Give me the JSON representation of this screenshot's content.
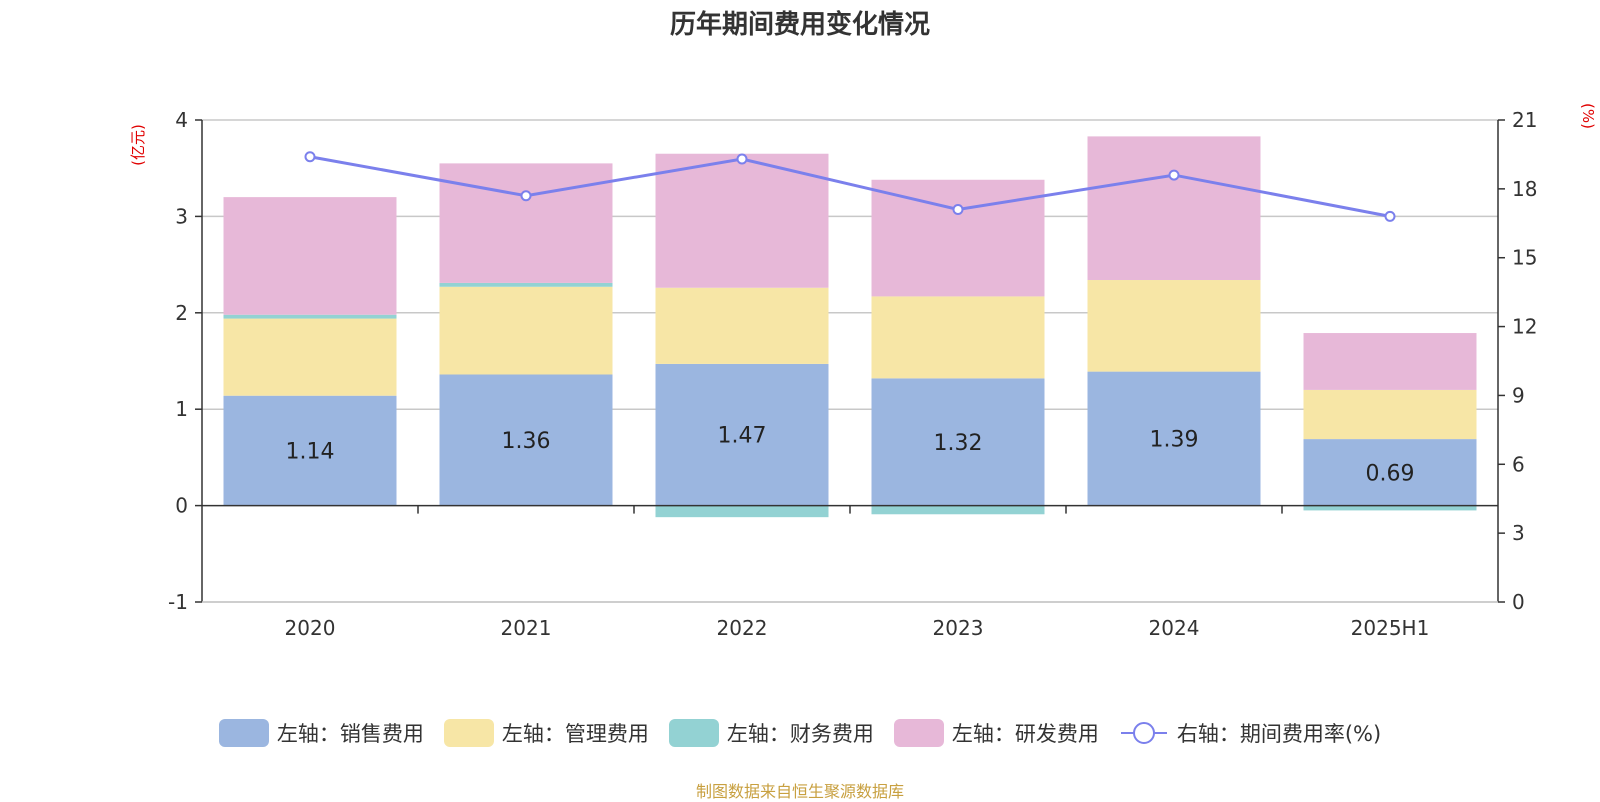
{
  "chart_data": {
    "type": "bar",
    "title": "历年期间费用变化情况",
    "categories": [
      "2020",
      "2021",
      "2022",
      "2023",
      "2024",
      "2025H1"
    ],
    "left_axis": {
      "unit": "(亿元)",
      "ylim": [
        -1,
        4
      ],
      "ticks": [
        "-1",
        "0",
        "1",
        "2",
        "3",
        "4"
      ]
    },
    "right_axis": {
      "unit": "(%)",
      "ylim": [
        0,
        21
      ],
      "ticks": [
        "0",
        "3",
        "6",
        "9",
        "12",
        "15",
        "18",
        "21"
      ]
    },
    "stacked": true,
    "series": [
      {
        "name": "左轴：销售费用",
        "type": "bar",
        "axis": "left",
        "color": "#9bb6e0",
        "values": [
          1.14,
          1.36,
          1.47,
          1.32,
          1.39,
          0.69
        ],
        "labels": [
          "1.14",
          "1.36",
          "1.47",
          "1.32",
          "1.39",
          "0.69"
        ]
      },
      {
        "name": "左轴：管理费用",
        "type": "bar",
        "axis": "left",
        "color": "#f7e6a6",
        "values": [
          0.8,
          0.91,
          0.79,
          0.85,
          0.95,
          0.51
        ]
      },
      {
        "name": "左轴：财务费用",
        "type": "bar",
        "axis": "left",
        "color": "#93d2d3",
        "values": [
          0.04,
          0.04,
          -0.12,
          -0.09,
          0.0,
          -0.05
        ]
      },
      {
        "name": "左轴：研发费用",
        "type": "bar",
        "axis": "left",
        "color": "#e7b8d8",
        "values": [
          1.22,
          1.24,
          1.39,
          1.21,
          1.49,
          0.59
        ]
      },
      {
        "name": "右轴：期间费用率(%)",
        "type": "line",
        "axis": "right",
        "color": "#7b80ec",
        "values": [
          19.4,
          17.7,
          19.3,
          17.1,
          18.6,
          16.8
        ]
      }
    ],
    "grid": true,
    "legend_position": "bottom"
  },
  "footer": {
    "source": "制图数据来自恒生聚源数据库"
  }
}
